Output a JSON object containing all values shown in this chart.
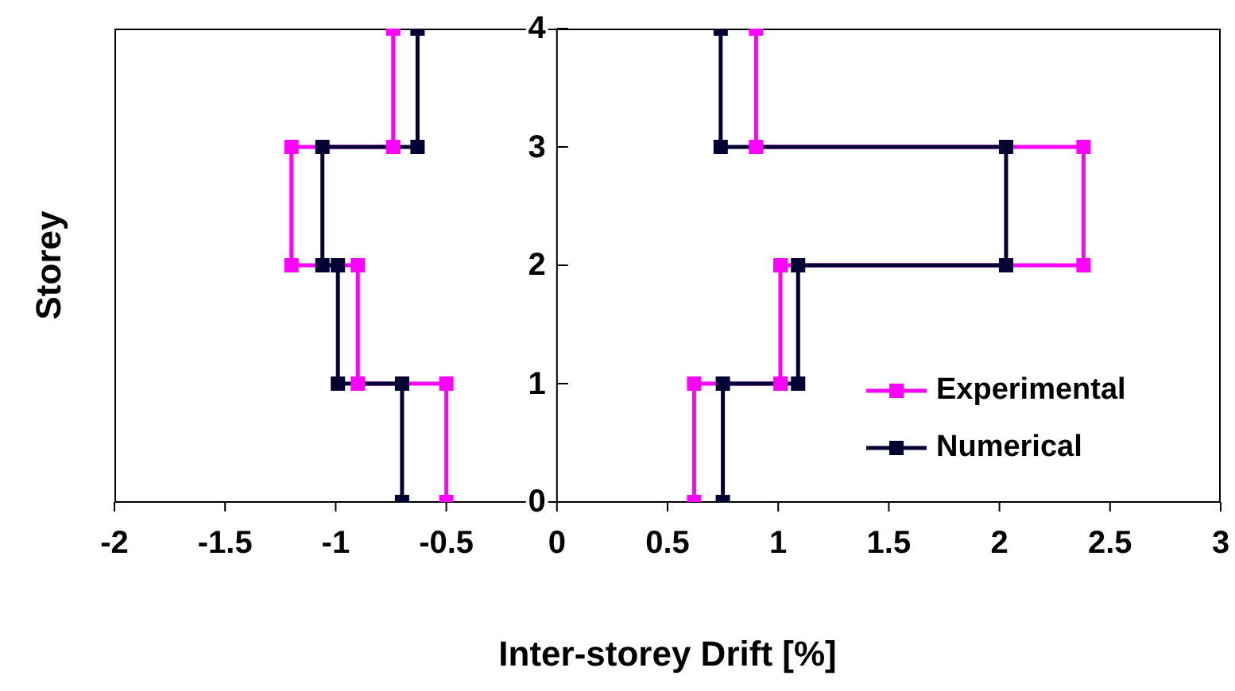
{
  "chart_data": {
    "type": "line",
    "xlabel": "Inter-storey Drift [%]",
    "ylabel": "Storey",
    "xlim": [
      -2,
      3
    ],
    "xticks": [
      -2,
      -1.5,
      -1,
      -0.5,
      0,
      0.5,
      1,
      1.5,
      2,
      2.5,
      3
    ],
    "ylim": [
      0,
      4
    ],
    "yticks": [
      0,
      1,
      2,
      3,
      4
    ],
    "grid": false,
    "legend": "right",
    "marker": "square",
    "line_style": "solid",
    "series": [
      {
        "name": "Experimental",
        "color": "#ff00ff",
        "x": [
          -0.5,
          -0.5,
          -0.9,
          -0.9,
          -1.2,
          -1.2,
          -0.74,
          -0.74,
          null,
          0.62,
          0.62,
          1.01,
          1.01,
          2.38,
          2.38,
          0.9,
          0.9
        ],
        "values": [
          0,
          1,
          1,
          2,
          2,
          3,
          3,
          4,
          null,
          0,
          1,
          1,
          2,
          2,
          3,
          3,
          4
        ]
      },
      {
        "name": "Numerical",
        "color": "#000033",
        "x": [
          -0.7,
          -0.7,
          -0.99,
          -0.99,
          -1.06,
          -1.06,
          -0.63,
          -0.63,
          null,
          0.75,
          0.75,
          1.09,
          1.09,
          2.03,
          2.03,
          0.74,
          0.74
        ],
        "values": [
          0,
          1,
          1,
          2,
          2,
          3,
          3,
          4,
          null,
          0,
          1,
          1,
          2,
          2,
          3,
          3,
          4
        ]
      }
    ]
  }
}
